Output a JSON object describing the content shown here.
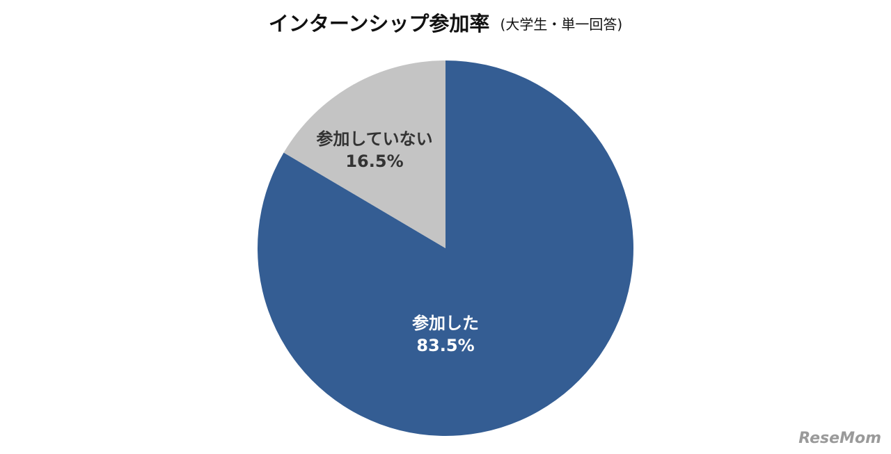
{
  "chart_data": {
    "type": "pie",
    "title": "インターンシップ参加率",
    "subtitle": "(大学生・単一回答)",
    "categories": [
      "参加した",
      "参加していない"
    ],
    "values": [
      83.5,
      16.5
    ],
    "value_labels": [
      "83.5%",
      "16.5%"
    ],
    "colors": [
      "#345d93",
      "#c4c4c4"
    ],
    "watermark": "ReseMom"
  }
}
